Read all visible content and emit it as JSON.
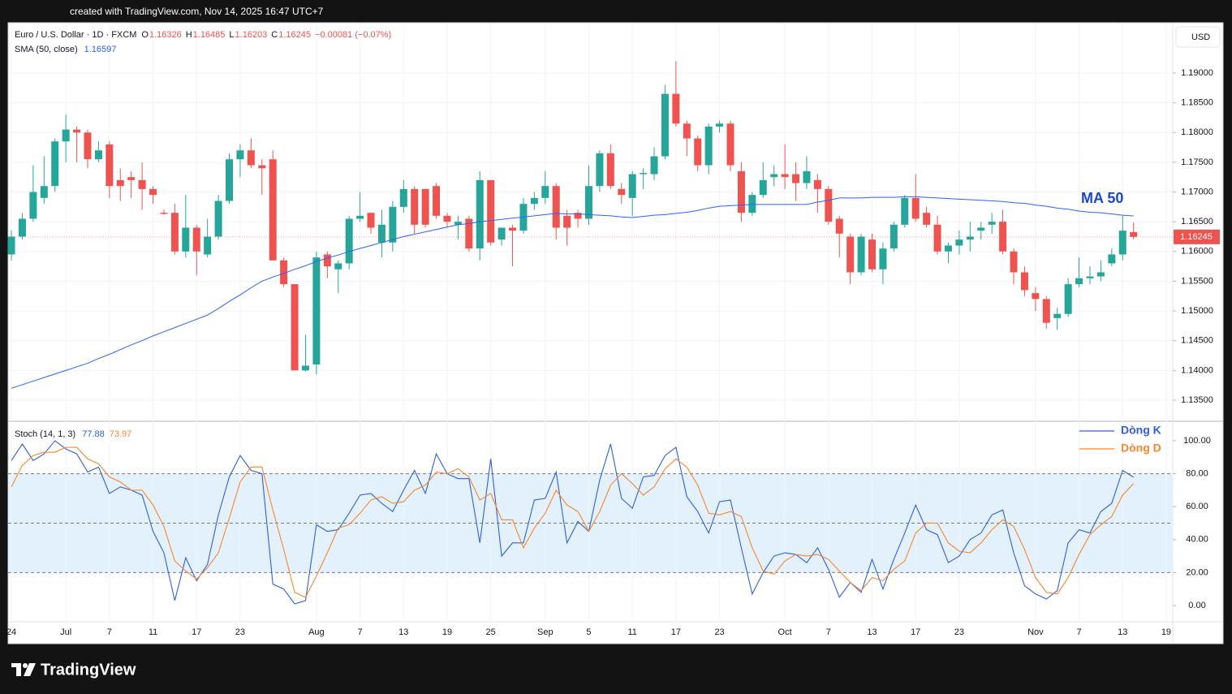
{
  "header": {
    "watermark": "created with TradingView.com, Nov 14, 2025 16:47 UTC+7",
    "logo": "TradingView"
  },
  "chart_data": [
    {
      "type": "candlestick",
      "title": "Euro / U.S. Dollar · 1D · FXCM",
      "currency": "USD",
      "ohlc_keys": [
        "O",
        "H",
        "L",
        "C"
      ],
      "change_label": "−0.00081 (−0.07%)",
      "up_color": "#26a69a",
      "down_color": "#ef5350",
      "open": [
        1.1595,
        1.1625,
        1.1655,
        1.169,
        1.171,
        1.1785,
        1.1805,
        1.18,
        1.1755,
        1.178,
        1.172,
        1.1725,
        1.172,
        1.1705,
        1.1665,
        1.1665,
        1.16,
        1.164,
        1.1595,
        1.1625,
        1.1685,
        1.1755,
        1.177,
        1.1745,
        1.1755,
        1.1585,
        1.1545,
        1.14,
        1.141,
        1.1595,
        1.157,
        1.158,
        1.1655,
        1.1665,
        1.1615,
        1.1615,
        1.1675,
        1.1705,
        1.1705,
        1.171,
        1.166,
        1.1645,
        1.1655,
        1.1605,
        1.172,
        1.162,
        1.164,
        1.1635,
        1.168,
        1.169,
        1.171,
        1.166,
        1.1665,
        1.1655,
        1.171,
        1.1765,
        1.1705,
        1.169,
        1.173,
        1.173,
        1.176,
        1.1865,
        1.1815,
        1.179,
        1.1745,
        1.181,
        1.1815,
        1.1735,
        1.1665,
        1.1695,
        1.1725,
        1.173,
        1.173,
        1.1715,
        1.172,
        1.1705,
        1.1655,
        1.1625,
        1.1565,
        1.162,
        1.157,
        1.1605,
        1.1645,
        1.169,
        1.1665,
        1.1645,
        1.16,
        1.161,
        1.162,
        1.1635,
        1.1645,
        1.165,
        1.16,
        1.1565,
        1.153,
        1.152,
        1.1488,
        1.1495,
        1.1545,
        1.1555,
        1.1558,
        1.158,
        1.1595,
        1.16326
      ],
      "high": [
        1.1635,
        1.1665,
        1.1745,
        1.176,
        1.179,
        1.183,
        1.181,
        1.1805,
        1.1785,
        1.1785,
        1.174,
        1.1735,
        1.175,
        1.171,
        1.167,
        1.168,
        1.1695,
        1.1645,
        1.1655,
        1.1695,
        1.1765,
        1.178,
        1.179,
        1.1755,
        1.177,
        1.159,
        1.1545,
        1.146,
        1.16,
        1.16,
        1.1585,
        1.166,
        1.17,
        1.1665,
        1.167,
        1.1685,
        1.172,
        1.171,
        1.1705,
        1.1715,
        1.1665,
        1.166,
        1.166,
        1.1735,
        1.172,
        1.164,
        1.1645,
        1.169,
        1.17,
        1.1735,
        1.1715,
        1.167,
        1.167,
        1.1745,
        1.177,
        1.178,
        1.1715,
        1.1735,
        1.174,
        1.1775,
        1.188,
        1.192,
        1.182,
        1.1795,
        1.1815,
        1.182,
        1.182,
        1.175,
        1.17,
        1.175,
        1.1745,
        1.178,
        1.175,
        1.176,
        1.173,
        1.171,
        1.166,
        1.163,
        1.163,
        1.163,
        1.1615,
        1.165,
        1.1695,
        1.173,
        1.1675,
        1.166,
        1.1615,
        1.1635,
        1.165,
        1.165,
        1.1665,
        1.167,
        1.1605,
        1.1575,
        1.154,
        1.1525,
        1.1505,
        1.1555,
        1.159,
        1.1575,
        1.1585,
        1.1605,
        1.166,
        1.16485
      ],
      "low": [
        1.1585,
        1.162,
        1.165,
        1.168,
        1.17,
        1.175,
        1.175,
        1.174,
        1.175,
        1.169,
        1.1685,
        1.169,
        1.167,
        1.168,
        1.1662,
        1.1595,
        1.159,
        1.156,
        1.159,
        1.162,
        1.168,
        1.1725,
        1.174,
        1.1695,
        1.1585,
        1.154,
        1.14,
        1.1398,
        1.1393,
        1.1555,
        1.153,
        1.157,
        1.165,
        1.163,
        1.159,
        1.16,
        1.1665,
        1.163,
        1.164,
        1.1655,
        1.164,
        1.162,
        1.16,
        1.1585,
        1.161,
        1.161,
        1.1575,
        1.163,
        1.167,
        1.168,
        1.162,
        1.161,
        1.164,
        1.1645,
        1.17,
        1.1705,
        1.168,
        1.166,
        1.1705,
        1.172,
        1.1755,
        1.181,
        1.176,
        1.1735,
        1.173,
        1.18,
        1.1735,
        1.165,
        1.166,
        1.169,
        1.171,
        1.1705,
        1.1685,
        1.1705,
        1.1665,
        1.1645,
        1.159,
        1.1545,
        1.156,
        1.1565,
        1.1545,
        1.16,
        1.164,
        1.165,
        1.164,
        1.1595,
        1.158,
        1.1595,
        1.16,
        1.162,
        1.163,
        1.1595,
        1.1545,
        1.1525,
        1.15,
        1.147,
        1.1468,
        1.149,
        1.154,
        1.1545,
        1.155,
        1.1575,
        1.1585,
        1.16203
      ],
      "close": [
        1.1625,
        1.1655,
        1.17,
        1.171,
        1.1785,
        1.1805,
        1.18,
        1.1755,
        1.177,
        1.171,
        1.171,
        1.172,
        1.1705,
        1.1695,
        1.1663,
        1.16,
        1.164,
        1.16,
        1.1625,
        1.1685,
        1.1755,
        1.177,
        1.1745,
        1.174,
        1.1585,
        1.1545,
        1.14,
        1.1408,
        1.159,
        1.1575,
        1.158,
        1.1655,
        1.166,
        1.164,
        1.1645,
        1.1675,
        1.1705,
        1.1645,
        1.1645,
        1.166,
        1.165,
        1.165,
        1.1605,
        1.172,
        1.1615,
        1.164,
        1.1635,
        1.168,
        1.169,
        1.171,
        1.164,
        1.164,
        1.1655,
        1.171,
        1.1765,
        1.171,
        1.1695,
        1.173,
        1.1732,
        1.176,
        1.1865,
        1.1815,
        1.179,
        1.1745,
        1.181,
        1.1815,
        1.1745,
        1.1665,
        1.1695,
        1.172,
        1.173,
        1.1725,
        1.1715,
        1.1735,
        1.1705,
        1.165,
        1.163,
        1.1565,
        1.1625,
        1.157,
        1.1605,
        1.1645,
        1.169,
        1.1655,
        1.1645,
        1.16,
        1.161,
        1.162,
        1.1625,
        1.164,
        1.165,
        1.16,
        1.1565,
        1.1535,
        1.152,
        1.148,
        1.1495,
        1.1545,
        1.1555,
        1.1558,
        1.1565,
        1.1595,
        1.1635,
        1.16245
      ],
      "overlay": {
        "name": "SMA (50, close)",
        "color": "#2962ff",
        "values": [
          1.137,
          1.1376,
          1.1382,
          1.1388,
          1.1394,
          1.14,
          1.1406,
          1.1412,
          1.142,
          1.1427,
          1.1435,
          1.1443,
          1.145,
          1.1458,
          1.1465,
          1.1472,
          1.1479,
          1.1486,
          1.1493,
          1.1504,
          1.1516,
          1.1527,
          1.1539,
          1.155,
          1.1557,
          1.1563,
          1.157,
          1.1576,
          1.1583,
          1.1589,
          1.1594,
          1.16,
          1.1605,
          1.161,
          1.1615,
          1.162,
          1.1625,
          1.1629,
          1.1633,
          1.1637,
          1.1641,
          1.1645,
          1.1647,
          1.165,
          1.1652,
          1.1654,
          1.1656,
          1.1658,
          1.166,
          1.1662,
          1.1664,
          1.1663,
          1.1663,
          1.1662,
          1.1661,
          1.166,
          1.1658,
          1.1657,
          1.1659,
          1.1661,
          1.1662,
          1.1664,
          1.1666,
          1.1669,
          1.1673,
          1.1676,
          1.1677,
          1.1678,
          1.1679,
          1.1679,
          1.1679,
          1.1679,
          1.1679,
          1.1679,
          1.1683,
          1.1686,
          1.169,
          1.169,
          1.169,
          1.1691,
          1.1691,
          1.1691,
          1.1692,
          1.1692,
          1.1691,
          1.169,
          1.1689,
          1.1688,
          1.1687,
          1.1686,
          1.1685,
          1.1684,
          1.1682,
          1.1681,
          1.1678,
          1.1676,
          1.1673,
          1.1671,
          1.1668,
          1.1666,
          1.1665,
          1.1663,
          1.1661,
          1.16597
        ]
      },
      "annotation": "MA 50",
      "xlim": [
        -0.3,
        106.6
      ],
      "ylim": [
        1.13145,
        1.19846
      ],
      "yticks": [
        {
          "value": 1.135,
          "label": "1.13500"
        },
        {
          "value": 1.14,
          "label": "1.14000"
        },
        {
          "value": 1.145,
          "label": "1.14500"
        },
        {
          "value": 1.15,
          "label": "1.15000"
        },
        {
          "value": 1.155,
          "label": "1.15500"
        },
        {
          "value": 1.16,
          "label": "1.16000"
        },
        {
          "value": 1.165,
          "label": "1.16500"
        },
        {
          "value": 1.17,
          "label": "1.17000"
        },
        {
          "value": 1.175,
          "label": "1.17500"
        },
        {
          "value": 1.18,
          "label": "1.18000"
        },
        {
          "value": 1.185,
          "label": "1.18500"
        },
        {
          "value": 1.19,
          "label": "1.19000"
        }
      ],
      "grid": true
    },
    {
      "type": "line",
      "title": "Stoch (14, 1, 3)",
      "series": [
        {
          "name": "Dòng K",
          "color": "#2f5fe0",
          "values": [
            88,
            98,
            88,
            92,
            100,
            95,
            92,
            81,
            84,
            68,
            72,
            70,
            67,
            45,
            32,
            3,
            29,
            15,
            25,
            55,
            78,
            91,
            82,
            80,
            13,
            10,
            1,
            3,
            49,
            45,
            46,
            56,
            67,
            68,
            62,
            57,
            70,
            82,
            68,
            92,
            80,
            77,
            77,
            38,
            89,
            30,
            38,
            38,
            64,
            65,
            81,
            38,
            51,
            45,
            76,
            98,
            65,
            59,
            78,
            79,
            91,
            96,
            66,
            57,
            44,
            63,
            64,
            35,
            7,
            20,
            30,
            32,
            31,
            26,
            35,
            22,
            5,
            14,
            8,
            28,
            10,
            28,
            44,
            61,
            46,
            43,
            26,
            30,
            40,
            44,
            55,
            58,
            32,
            12,
            7,
            4,
            9,
            38,
            46,
            44,
            57,
            62,
            82,
            77.88
          ]
        },
        {
          "name": "Dòng D",
          "color": "#f7862b",
          "values": [
            72,
            85,
            91,
            93,
            93,
            96,
            96,
            89,
            86,
            78,
            75,
            70,
            70,
            61,
            48,
            27,
            21,
            16,
            23,
            32,
            53,
            75,
            84,
            84,
            58,
            34,
            8,
            5,
            18,
            32,
            47,
            49,
            56,
            64,
            66,
            62,
            63,
            70,
            73,
            81,
            80,
            83,
            78,
            64,
            68,
            52,
            52,
            35,
            47,
            56,
            70,
            61,
            57,
            45,
            57,
            73,
            80,
            74,
            67,
            72,
            83,
            89,
            84,
            73,
            56,
            55,
            57,
            54,
            35,
            21,
            19,
            27,
            31,
            30,
            31,
            28,
            21,
            14,
            9,
            17,
            15,
            22,
            27,
            44,
            50,
            50,
            38,
            33,
            32,
            38,
            46,
            52,
            48,
            34,
            17,
            8,
            7,
            17,
            31,
            43,
            49,
            54,
            67,
            73.97
          ]
        }
      ],
      "band": [
        20,
        80
      ],
      "midline": 50,
      "band_color": "#e3f1fc",
      "xlim": [
        -0.3,
        106.6
      ],
      "ylim": [
        -9.85,
        111.8
      ],
      "yticks": [
        {
          "value": 0,
          "label": "0.00"
        },
        {
          "value": 20,
          "label": "20.00"
        },
        {
          "value": 40,
          "label": "40.00"
        },
        {
          "value": 60,
          "label": "60.00"
        },
        {
          "value": 80,
          "label": "80.00"
        },
        {
          "value": 100,
          "label": "100.00"
        }
      ],
      "xticks": [
        {
          "value": 0,
          "label": "24"
        },
        {
          "value": 5,
          "label": "Jul"
        },
        {
          "value": 9,
          "label": "7"
        },
        {
          "value": 13,
          "label": "11"
        },
        {
          "value": 17,
          "label": "17"
        },
        {
          "value": 21,
          "label": "23"
        },
        {
          "value": 28,
          "label": "Aug"
        },
        {
          "value": 32,
          "label": "7"
        },
        {
          "value": 36,
          "label": "13"
        },
        {
          "value": 40,
          "label": "19"
        },
        {
          "value": 44,
          "label": "25"
        },
        {
          "value": 49,
          "label": "Sep"
        },
        {
          "value": 53,
          "label": "5"
        },
        {
          "value": 57,
          "label": "11"
        },
        {
          "value": 61,
          "label": "17"
        },
        {
          "value": 65,
          "label": "23"
        },
        {
          "value": 71,
          "label": "Oct"
        },
        {
          "value": 75,
          "label": "7"
        },
        {
          "value": 79,
          "label": "13"
        },
        {
          "value": 83,
          "label": "17"
        },
        {
          "value": 87,
          "label": "23"
        },
        {
          "value": 94,
          "label": "Nov"
        },
        {
          "value": 98,
          "label": "7"
        },
        {
          "value": 102,
          "label": "13"
        },
        {
          "value": 106,
          "label": "19"
        }
      ],
      "grid": true
    }
  ]
}
